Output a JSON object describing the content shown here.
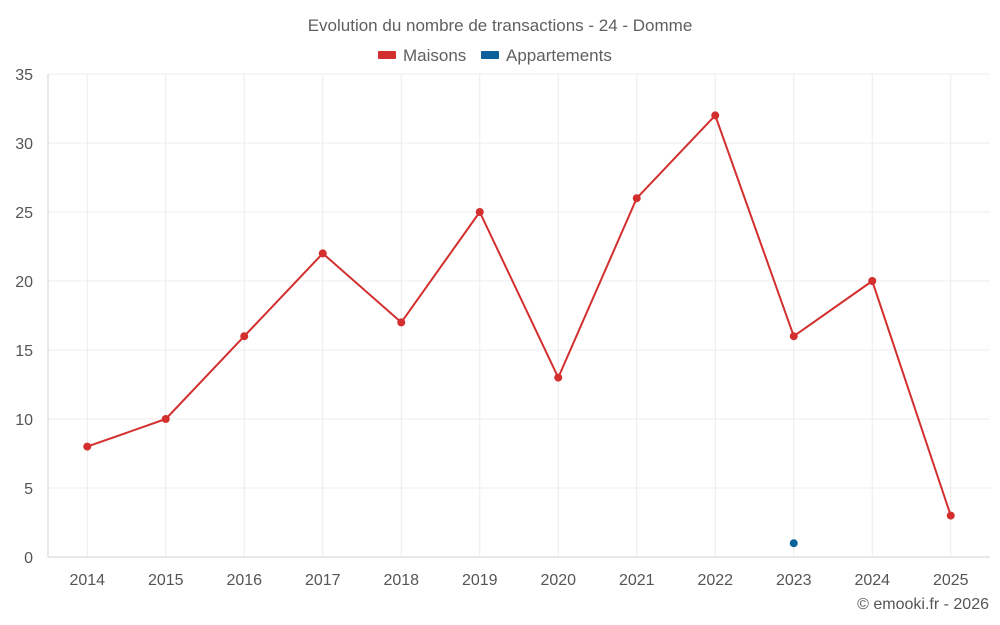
{
  "chart_data": {
    "type": "line",
    "title": "Evolution du nombre de transactions - 24 - Domme",
    "x": [
      "2014",
      "2015",
      "2016",
      "2017",
      "2018",
      "2019",
      "2020",
      "2021",
      "2022",
      "2023",
      "2024",
      "2025"
    ],
    "ylim": [
      0,
      35
    ],
    "yticks": [
      0,
      5,
      10,
      15,
      20,
      25,
      30,
      35
    ],
    "grid": true,
    "legend_position": "top-center",
    "series": [
      {
        "name": "Maisons",
        "color": "#d32f2f",
        "values": [
          8,
          10,
          16,
          22,
          17,
          25,
          13,
          26,
          32,
          16,
          20,
          3
        ]
      },
      {
        "name": "Appartements",
        "color": "#0b6199",
        "values": [
          null,
          null,
          null,
          null,
          null,
          null,
          null,
          null,
          null,
          1,
          null,
          null
        ]
      }
    ]
  },
  "credit": "© emooki.fr - 2026"
}
